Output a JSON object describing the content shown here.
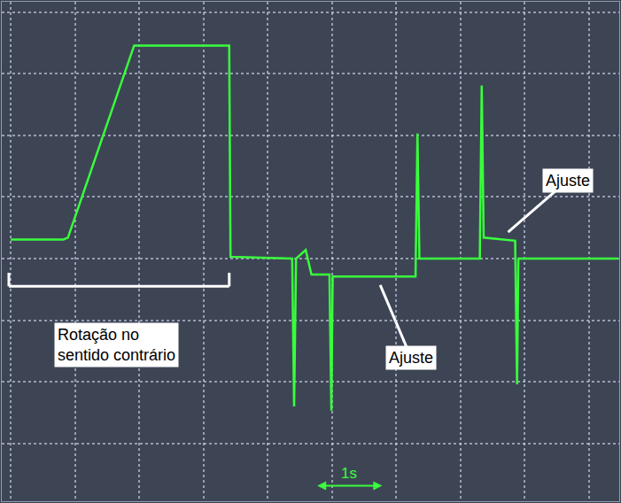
{
  "chart_data": {
    "type": "line",
    "color": "#39ff3c",
    "grid": true,
    "tick_labels": false,
    "x": [
      0,
      0.82,
      0.89,
      1.92,
      3.4,
      3.42,
      4.38,
      4.41,
      4.44,
      4.59,
      4.68,
      4.96,
      4.99,
      5.01,
      6.3,
      6.33,
      6.36,
      7.3,
      7.33,
      7.36,
      7.85,
      7.88,
      7.9,
      9.46
    ],
    "values": [
      0.31,
      0.31,
      0.34,
      3.46,
      3.46,
      0.03,
      0,
      -2.4,
      0,
      0.14,
      -0.26,
      -0.26,
      -2.47,
      -0.29,
      -0.29,
      2.03,
      0,
      0,
      2.81,
      0.34,
      0.29,
      -2.04,
      0,
      0
    ],
    "xlim": [
      -0.14,
      9.47
    ],
    "xticks": [
      0,
      1,
      2,
      3,
      4,
      5,
      6,
      7,
      8,
      9
    ],
    "ylim": [
      -3.94,
      4.17
    ],
    "yticks": [
      -3,
      -2,
      -1,
      0,
      1,
      2,
      3,
      4
    ],
    "annotations": [
      {
        "text": "Rotação no sentido contrário",
        "x": 1.64,
        "y": -1.4,
        "bracket": [
          -0.03,
          3.4
        ],
        "bracket_y": -0.45
      },
      {
        "text": "Ajuste",
        "x": 6.23,
        "y": -1.61,
        "arrow_x": 5.75,
        "arrow_y": -0.43
      },
      {
        "text": "Ajuste",
        "x": 8.67,
        "y": 1.27,
        "arrow_x": 7.74,
        "arrow_y": 0.43
      }
    ],
    "scale_bar": {
      "text": "1s",
      "x": [
        4.75,
        5.78
      ],
      "y": -3.69
    }
  }
}
